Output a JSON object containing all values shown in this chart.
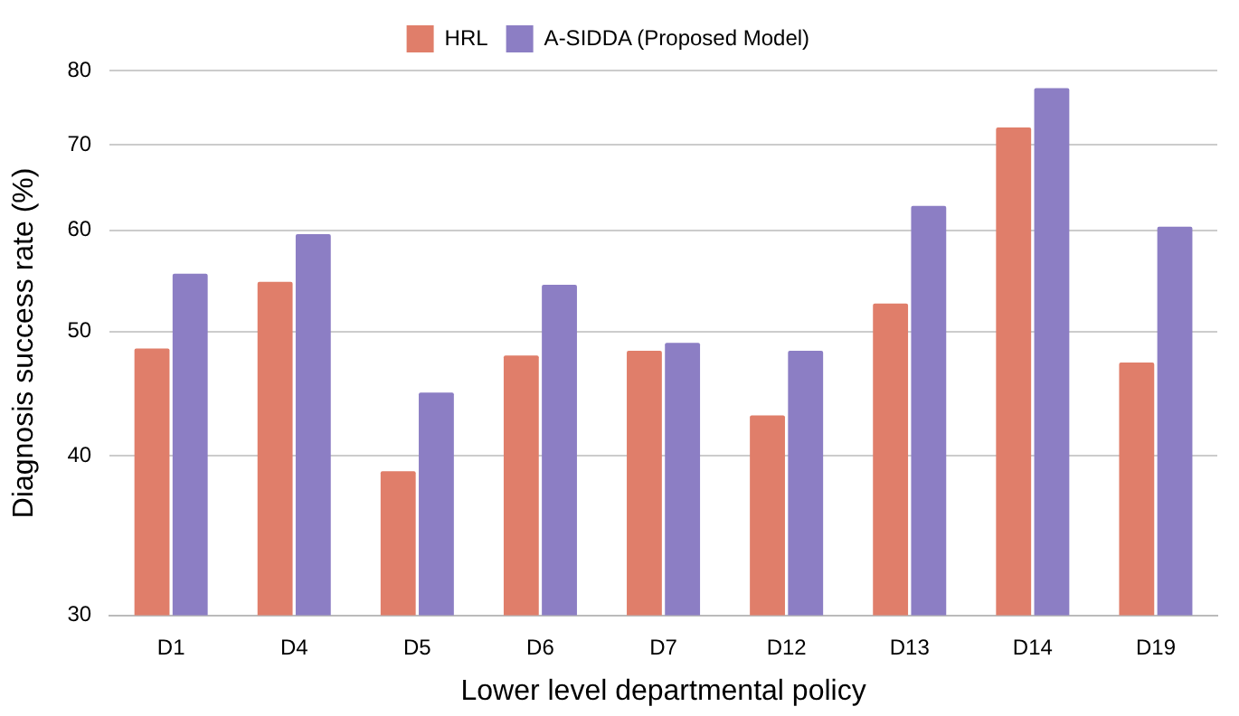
{
  "chart_data": {
    "type": "bar",
    "xlabel": "Lower level departmental policy",
    "ylabel": "Diagnosis success rate (%)",
    "categories": [
      "D1",
      "D4",
      "D5",
      "D6",
      "D7",
      "D12",
      "D13",
      "D14",
      "D19"
    ],
    "series": [
      {
        "name": "HRL",
        "color": "#e07e6a",
        "values": [
          48.5,
          54.7,
          38.9,
          47.9,
          48.3,
          43.0,
          52.6,
          72.2,
          47.3
        ]
      },
      {
        "name": "A-SIDDA (Proposed Model)",
        "color": "#8c7ec4",
        "values": [
          55.5,
          59.6,
          44.8,
          54.4,
          49.0,
          48.3,
          62.7,
          77.5,
          60.4
        ]
      }
    ],
    "log": true,
    "ylim": [
      30,
      80
    ],
    "yticks": [
      30,
      40,
      50,
      60,
      70,
      80
    ],
    "grid": "y",
    "legend": "top"
  }
}
